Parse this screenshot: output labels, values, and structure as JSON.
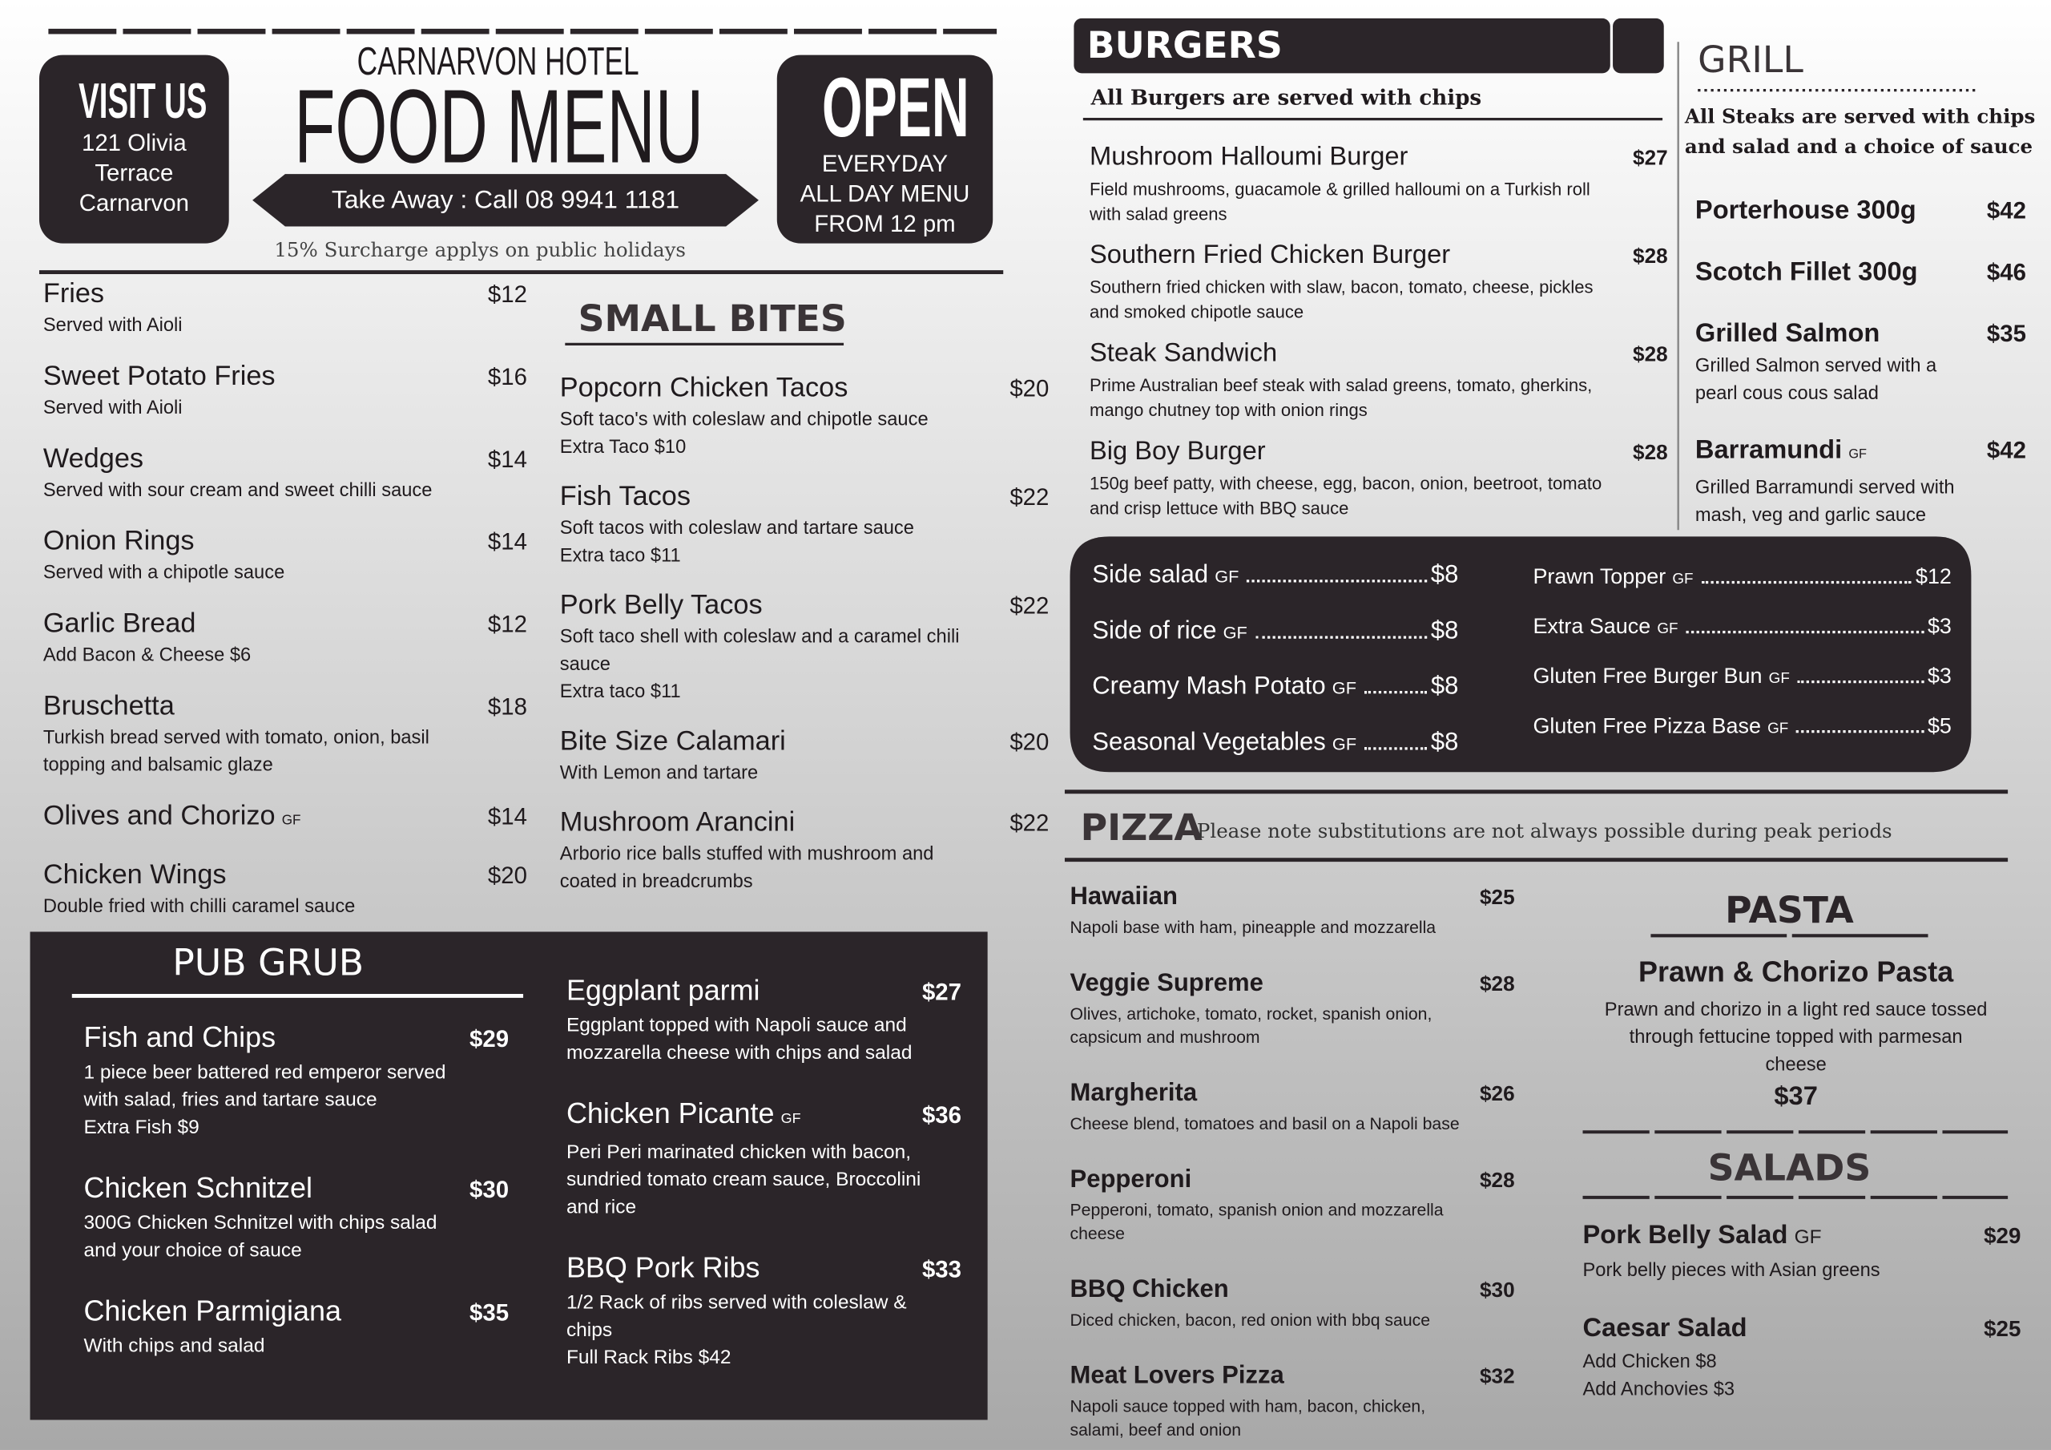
{
  "header": {
    "visit": {
      "title": "VISIT US",
      "address": [
        "121 Olivia",
        "Terrace",
        "Carnarvon"
      ]
    },
    "hotel": "CARNARVON HOTEL",
    "title": "FOOD MENU",
    "takeaway": "Take Away : Call 08 9941 1181",
    "surcharge": "15% Surcharge applys on public holidays",
    "open": {
      "title": "OPEN",
      "lines": [
        "EVERYDAY",
        "ALL DAY MENU",
        "FROM 12 pm"
      ]
    }
  },
  "starters": {
    "items": [
      {
        "name": "Fries",
        "price": "$12",
        "desc": [
          "Served with Aioli"
        ]
      },
      {
        "name": "Sweet Potato Fries",
        "price": "$16",
        "desc": [
          "Served with Aioli"
        ]
      },
      {
        "name": "Wedges",
        "price": "$14",
        "desc": [
          "Served with sour cream and sweet chilli sauce"
        ]
      },
      {
        "name": "Onion Rings",
        "price": "$14",
        "desc": [
          "Served with a chipotle sauce"
        ]
      },
      {
        "name": "Garlic Bread",
        "price": "$12",
        "desc": [
          "Add Bacon & Cheese $6"
        ]
      },
      {
        "name": "Bruschetta",
        "price": "$18",
        "desc": [
          "Turkish bread served with tomato, onion, basil",
          "topping and balsamic glaze"
        ]
      },
      {
        "name": "Olives and Chorizo",
        "tag": "GF",
        "price": "$14"
      },
      {
        "name": "Chicken Wings",
        "price": "$20",
        "desc": [
          "Double fried with chilli caramel sauce"
        ]
      }
    ]
  },
  "small_bites": {
    "title": "SMALL BITES",
    "items": [
      {
        "name": "Popcorn Chicken Tacos",
        "price": "$20",
        "desc": [
          "Soft taco's with coleslaw and chipotle sauce",
          "Extra Taco  $10"
        ]
      },
      {
        "name": "Fish Tacos",
        "price": "$22",
        "desc": [
          "Soft tacos with coleslaw and tartare sauce",
          "Extra taco $11"
        ]
      },
      {
        "name": "Pork Belly Tacos",
        "price": "$22",
        "desc": [
          "Soft taco shell with coleslaw and a caramel chili",
          "sauce",
          "Extra taco $11"
        ]
      },
      {
        "name": "Bite Size Calamari",
        "price": "$20",
        "desc": [
          "With Lemon and tartare"
        ]
      },
      {
        "name": "Mushroom Arancini",
        "price": "$22",
        "desc": [
          "Arborio rice balls stuffed with mushroom and",
          "coated in breadcrumbs"
        ]
      }
    ]
  },
  "pub_grub": {
    "title": "PUB GRUB",
    "left_items": [
      {
        "name": "Fish and Chips",
        "price": "$29",
        "desc": [
          "1 piece beer battered red emperor served",
          "with salad, fries and tartare sauce",
          "Extra Fish  $9"
        ]
      },
      {
        "name": "Chicken Schnitzel",
        "price": "$30",
        "desc": [
          "300G Chicken Schnitzel with chips salad",
          "and your choice of sauce"
        ]
      },
      {
        "name": "Chicken Parmigiana",
        "price": "$35",
        "desc": [
          "With chips and salad"
        ]
      }
    ],
    "right_items": [
      {
        "name": "Eggplant parmi",
        "price": "$27",
        "desc": [
          "Eggplant topped with Napoli sauce and",
          "mozzarella cheese with chips and salad"
        ]
      },
      {
        "name": "Chicken Picante",
        "tag": "GF",
        "price": "$36",
        "desc": [
          "Peri Peri marinated chicken with bacon,",
          "sundried tomato cream sauce, Broccolini",
          "and rice"
        ]
      },
      {
        "name": "BBQ Pork Ribs",
        "price": "$33",
        "desc": [
          "1/2 Rack of ribs served with coleslaw &",
          "chips",
          "Full Rack Ribs  $42"
        ]
      }
    ]
  },
  "burgers": {
    "title": "BURGERS",
    "note": "All Burgers are served with chips",
    "items": [
      {
        "name": "Mushroom Halloumi Burger",
        "price": "$27",
        "desc": [
          "Field mushrooms, guacamole & grilled halloumi on a Turkish roll",
          "with salad greens"
        ]
      },
      {
        "name": "Southern Fried Chicken Burger",
        "price": "$28",
        "desc": [
          "Southern fried chicken with slaw, bacon, tomato, cheese, pickles",
          "and smoked chipotle sauce"
        ]
      },
      {
        "name": "Steak Sandwich",
        "price": "$28",
        "desc": [
          "Prime Australian beef steak with salad greens, tomato, gherkins,",
          "mango chutney top with onion rings"
        ]
      },
      {
        "name": "Big Boy Burger",
        "price": "$28",
        "desc": [
          "150g beef patty, with cheese, egg, bacon, onion, beetroot, tomato",
          "and crisp lettuce with BBQ sauce"
        ]
      }
    ]
  },
  "grill": {
    "title": "GRILL",
    "note": [
      "All Steaks are served with chips",
      "and salad and a choice of sauce"
    ],
    "items": [
      {
        "name": "Porterhouse 300g",
        "price": "$42"
      },
      {
        "name": "Scotch Fillet 300g",
        "price": "$46"
      },
      {
        "name": "Grilled Salmon",
        "price": "$35",
        "desc": [
          "Grilled Salmon served with a",
          "pearl cous cous salad"
        ]
      },
      {
        "name": "Barramundi",
        "tag": "GF",
        "price": "$42",
        "desc": [
          "Grilled Barramundi served with",
          "mash, veg and garlic sauce"
        ]
      }
    ]
  },
  "sides": {
    "left": [
      {
        "name": "Side salad",
        "tag": "GF",
        "price": "$8"
      },
      {
        "name": "Side of rice",
        "tag": "GF",
        "price": "$8"
      },
      {
        "name": "Creamy Mash Potato",
        "tag": "GF",
        "price": "$8"
      },
      {
        "name": "Seasonal Vegetables",
        "tag": "GF",
        "price": "$8"
      }
    ],
    "right": [
      {
        "name": "Prawn Topper",
        "tag": "GF",
        "price": "$12"
      },
      {
        "name": "Extra Sauce",
        "tag": "GF",
        "price": "$3"
      },
      {
        "name": "Gluten Free Burger Bun",
        "tag": "GF",
        "price": "$3"
      },
      {
        "name": "Gluten Free Pizza Base",
        "tag": "GF",
        "price": "$5"
      }
    ]
  },
  "pizza": {
    "title": "PIZZA",
    "note": "Please note substitutions are not always possible during peak periods",
    "items": [
      {
        "name": "Hawaiian",
        "price": "$25",
        "desc": [
          "Napoli base with ham, pineapple and mozzarella"
        ]
      },
      {
        "name": "Veggie Supreme",
        "price": "$28",
        "desc": [
          "Olives, artichoke, tomato, rocket, spanish onion,",
          "capsicum and mushroom"
        ]
      },
      {
        "name": "Margherita",
        "price": "$26",
        "desc": [
          "Cheese blend, tomatoes and basil on a Napoli base"
        ]
      },
      {
        "name": "Pepperoni",
        "price": "$28",
        "desc": [
          "Pepperoni, tomato, spanish onion and mozzarella",
          "cheese"
        ]
      },
      {
        "name": "BBQ Chicken",
        "price": "$30",
        "desc": [
          "Diced chicken, bacon, red onion with bbq sauce"
        ]
      },
      {
        "name": "Meat Lovers Pizza",
        "price": "$32",
        "desc": [
          "Napoli sauce topped with ham, bacon, chicken,",
          "salami, beef and onion"
        ]
      }
    ]
  },
  "pasta": {
    "title": "PASTA",
    "dish": {
      "name": "Prawn & Chorizo Pasta",
      "desc": [
        "Prawn and chorizo in a light red sauce tossed",
        "through fettucine topped with parmesan",
        "cheese"
      ],
      "price": "$37"
    }
  },
  "salads": {
    "title": "SALADS",
    "items": [
      {
        "name": "Pork Belly Salad",
        "tag": "GF",
        "price": "$29",
        "desc": [
          "Pork belly pieces with Asian greens"
        ]
      },
      {
        "name": "Caesar Salad",
        "price": "$25",
        "desc": [
          "Add Chicken $8",
          "Add Anchovies $3"
        ]
      }
    ]
  }
}
